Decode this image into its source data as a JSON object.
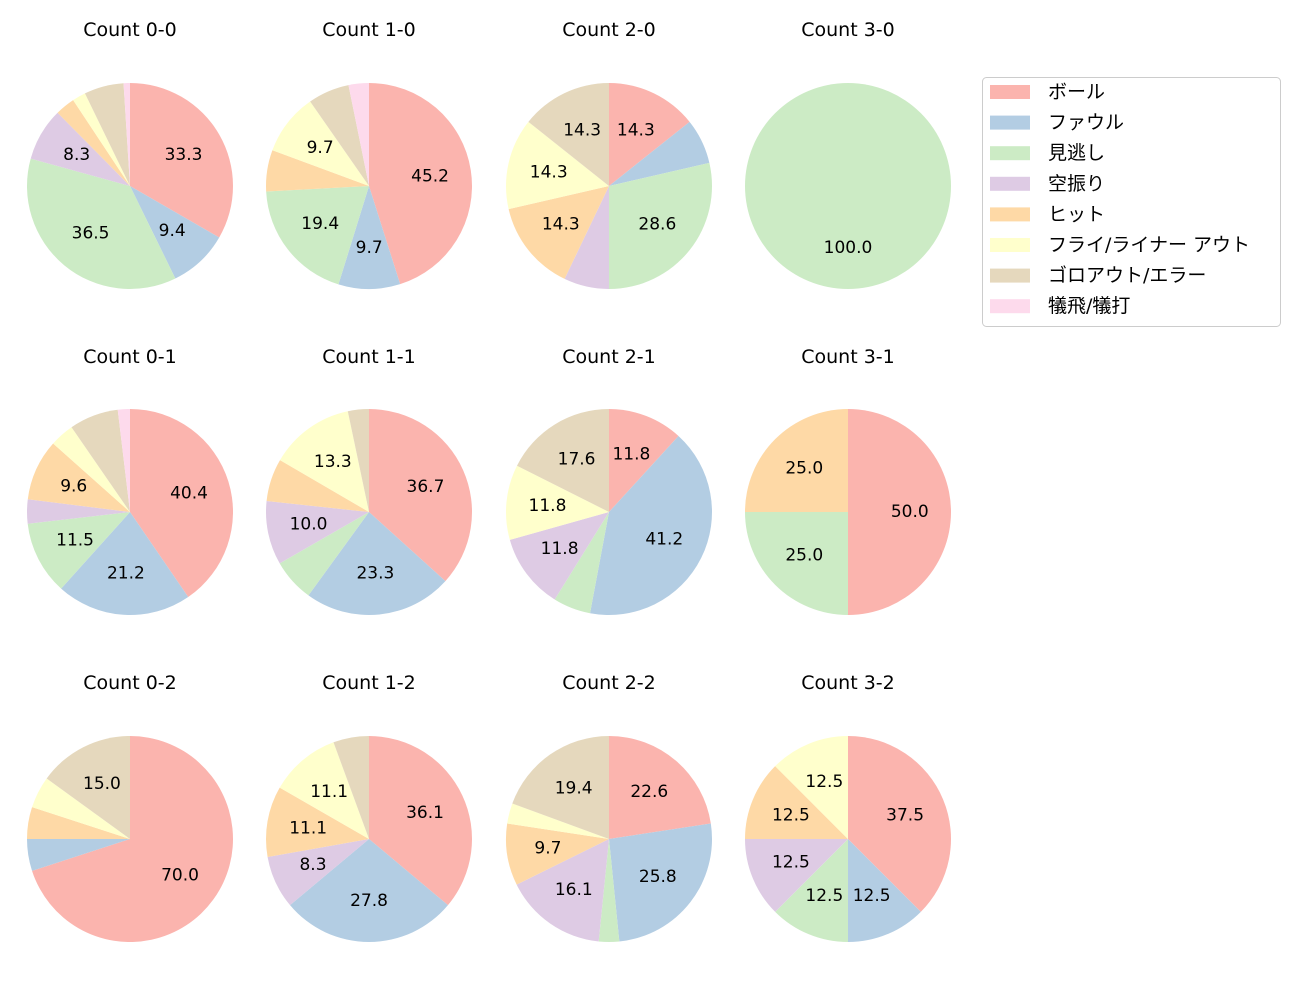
{
  "chart_data": {
    "type": "pie",
    "legend": {
      "placement": "upper-right",
      "entries": [
        "ボール",
        "ファウル",
        "見逃し",
        "空振り",
        "ヒット",
        "フライ/ライナー アウト",
        "ゴロアウト/エラー",
        "犠飛/犠打"
      ],
      "colors": [
        "#fbb4ae",
        "#b3cde3",
        "#ccebc5",
        "#decbe4",
        "#fed9a6",
        "#ffffcc",
        "#e5d8bd",
        "#fddaec"
      ]
    },
    "start_angle_deg": 90,
    "direction": "clockwise",
    "label_min_percent": 8,
    "pies": [
      {
        "title": "Count 0-0",
        "values": [
          33.3,
          9.4,
          36.5,
          8.3,
          3.1,
          2.1,
          6.2,
          1.0
        ]
      },
      {
        "title": "Count 1-0",
        "values": [
          45.2,
          9.7,
          19.4,
          0,
          6.5,
          9.7,
          6.5,
          3.2
        ]
      },
      {
        "title": "Count 2-0",
        "values": [
          14.3,
          7.1,
          28.6,
          7.1,
          14.3,
          14.3,
          14.3,
          0
        ]
      },
      {
        "title": "Count 3-0",
        "values": [
          0,
          0,
          100.0,
          0,
          0,
          0,
          0,
          0
        ]
      },
      {
        "title": "Count 0-1",
        "values": [
          40.4,
          21.2,
          11.5,
          3.8,
          9.6,
          3.8,
          7.7,
          1.9
        ]
      },
      {
        "title": "Count 1-1",
        "values": [
          36.7,
          23.3,
          6.7,
          10.0,
          6.7,
          13.3,
          3.3,
          0
        ]
      },
      {
        "title": "Count 2-1",
        "values": [
          11.8,
          41.2,
          5.9,
          11.8,
          0,
          11.8,
          17.6,
          0
        ]
      },
      {
        "title": "Count 3-1",
        "values": [
          50.0,
          0,
          25.0,
          0,
          25.0,
          0,
          0,
          0
        ]
      },
      {
        "title": "Count 0-2",
        "values": [
          70.0,
          5.0,
          0,
          0,
          5.0,
          5.0,
          15.0,
          0
        ]
      },
      {
        "title": "Count 1-2",
        "values": [
          36.1,
          27.8,
          0,
          8.3,
          11.1,
          11.1,
          5.6,
          0
        ]
      },
      {
        "title": "Count 2-2",
        "values": [
          22.6,
          25.8,
          3.2,
          16.1,
          9.7,
          3.2,
          19.4,
          0
        ]
      },
      {
        "title": "Count 3-2",
        "values": [
          37.5,
          12.5,
          12.5,
          12.5,
          12.5,
          12.5,
          0,
          0
        ]
      }
    ]
  }
}
